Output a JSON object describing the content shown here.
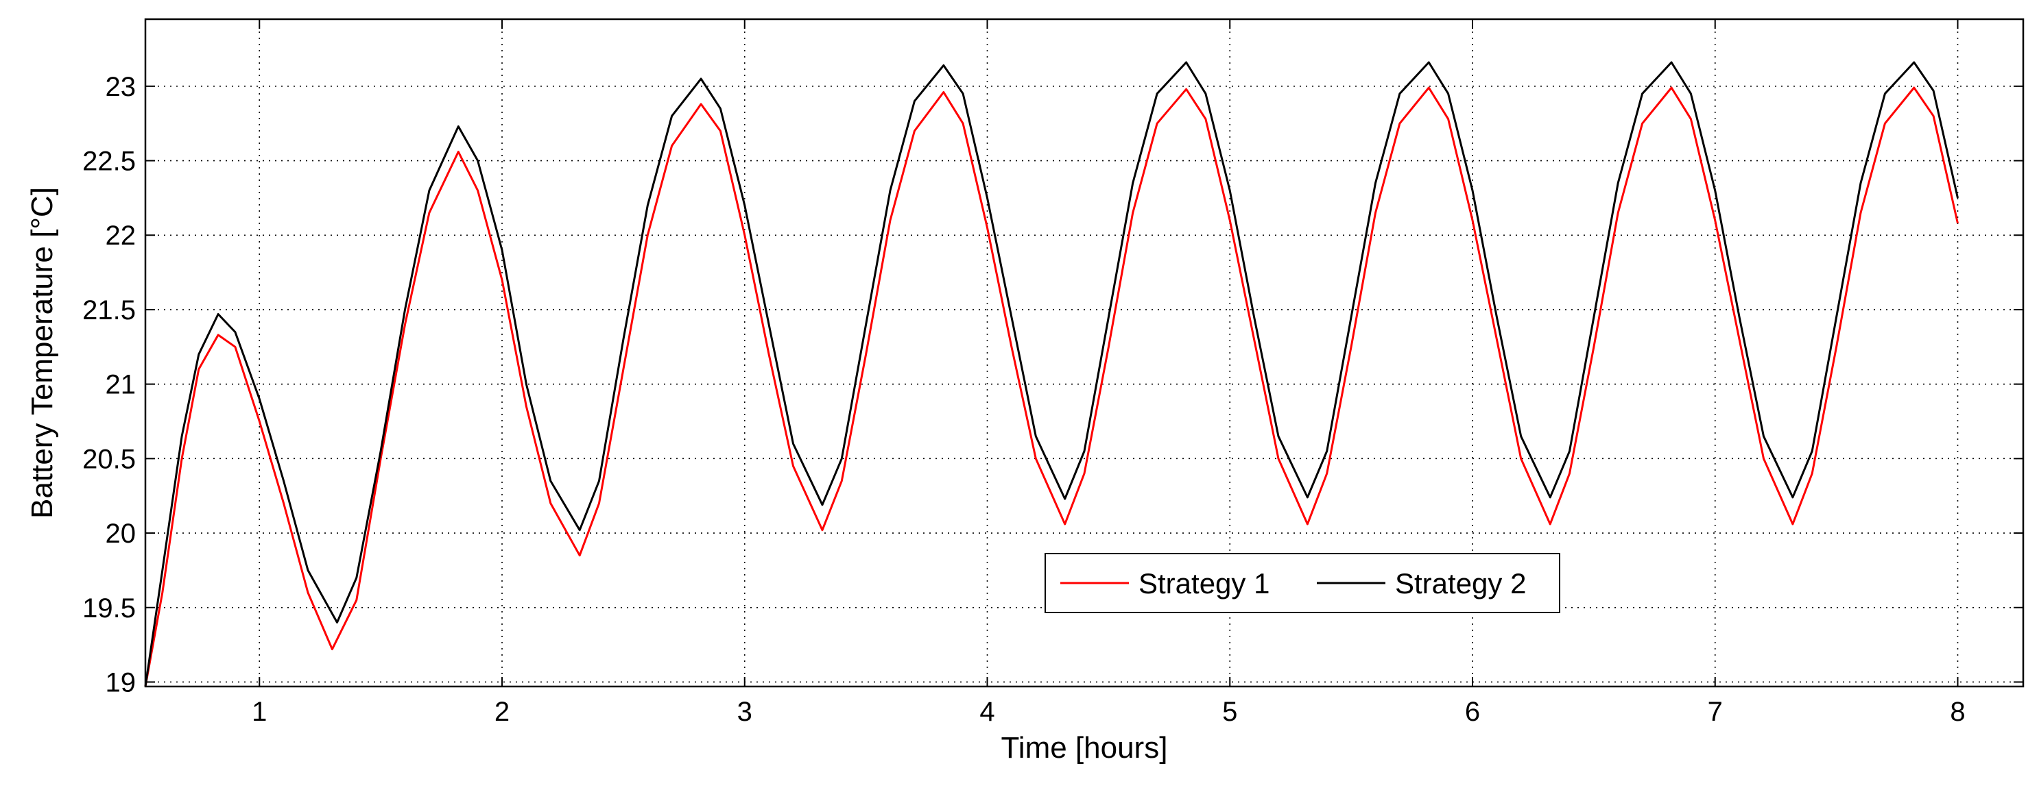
{
  "chart_data": {
    "type": "line",
    "title": "",
    "xlabel": "Time [hours]",
    "ylabel": "Battery Temperature [°C]",
    "xlim": [
      0.53,
      8.27
    ],
    "ylim": [
      18.97,
      23.45
    ],
    "xticks": [
      1,
      2,
      3,
      4,
      5,
      6,
      7,
      8
    ],
    "xtick_labels": [
      "1",
      "2",
      "3",
      "4",
      "5",
      "6",
      "7",
      "8"
    ],
    "yticks": [
      19,
      19.5,
      20,
      20.5,
      21,
      21.5,
      22,
      22.5,
      23
    ],
    "ytick_labels": [
      "19",
      "19.5",
      "20",
      "20.5",
      "21",
      "21.5",
      "22",
      "22.5",
      "23"
    ],
    "grid": true,
    "grid_style": "dotted",
    "legend_position": "lower-right (inside axes)",
    "legend_orientation": "horizontal",
    "series": [
      {
        "name": "Strategy 1",
        "color": "#ff0000",
        "points": [
          [
            0.53,
            18.97
          ],
          [
            0.6,
            19.6
          ],
          [
            0.68,
            20.5
          ],
          [
            0.75,
            21.1
          ],
          [
            0.83,
            21.33
          ],
          [
            0.9,
            21.25
          ],
          [
            1.0,
            20.75
          ],
          [
            1.1,
            20.2
          ],
          [
            1.2,
            19.6
          ],
          [
            1.3,
            19.22
          ],
          [
            1.4,
            19.55
          ],
          [
            1.5,
            20.5
          ],
          [
            1.6,
            21.4
          ],
          [
            1.7,
            22.15
          ],
          [
            1.82,
            22.56
          ],
          [
            1.9,
            22.3
          ],
          [
            2.0,
            21.7
          ],
          [
            2.1,
            20.85
          ],
          [
            2.2,
            20.2
          ],
          [
            2.32,
            19.85
          ],
          [
            2.4,
            20.2
          ],
          [
            2.5,
            21.1
          ],
          [
            2.6,
            22.0
          ],
          [
            2.7,
            22.6
          ],
          [
            2.82,
            22.88
          ],
          [
            2.9,
            22.7
          ],
          [
            3.0,
            22.0
          ],
          [
            3.1,
            21.2
          ],
          [
            3.2,
            20.45
          ],
          [
            3.32,
            20.02
          ],
          [
            3.4,
            20.35
          ],
          [
            3.5,
            21.2
          ],
          [
            3.6,
            22.1
          ],
          [
            3.7,
            22.7
          ],
          [
            3.82,
            22.96
          ],
          [
            3.9,
            22.75
          ],
          [
            4.0,
            22.05
          ],
          [
            4.1,
            21.25
          ],
          [
            4.2,
            20.5
          ],
          [
            4.32,
            20.06
          ],
          [
            4.4,
            20.4
          ],
          [
            4.5,
            21.25
          ],
          [
            4.6,
            22.15
          ],
          [
            4.7,
            22.75
          ],
          [
            4.82,
            22.98
          ],
          [
            4.9,
            22.78
          ],
          [
            5.0,
            22.1
          ],
          [
            5.1,
            21.3
          ],
          [
            5.2,
            20.5
          ],
          [
            5.32,
            20.06
          ],
          [
            5.4,
            20.4
          ],
          [
            5.5,
            21.25
          ],
          [
            5.6,
            22.15
          ],
          [
            5.7,
            22.75
          ],
          [
            5.82,
            22.99
          ],
          [
            5.9,
            22.78
          ],
          [
            6.0,
            22.1
          ],
          [
            6.1,
            21.3
          ],
          [
            6.2,
            20.5
          ],
          [
            6.32,
            20.06
          ],
          [
            6.4,
            20.4
          ],
          [
            6.5,
            21.25
          ],
          [
            6.6,
            22.15
          ],
          [
            6.7,
            22.75
          ],
          [
            6.82,
            22.99
          ],
          [
            6.9,
            22.78
          ],
          [
            7.0,
            22.1
          ],
          [
            7.1,
            21.3
          ],
          [
            7.2,
            20.5
          ],
          [
            7.32,
            20.06
          ],
          [
            7.4,
            20.4
          ],
          [
            7.5,
            21.25
          ],
          [
            7.6,
            22.15
          ],
          [
            7.7,
            22.75
          ],
          [
            7.82,
            22.99
          ],
          [
            7.9,
            22.8
          ],
          [
            8.0,
            22.08
          ]
        ]
      },
      {
        "name": "Strategy 2",
        "color": "#000000",
        "points": [
          [
            0.53,
            18.97
          ],
          [
            0.6,
            19.75
          ],
          [
            0.68,
            20.65
          ],
          [
            0.75,
            21.2
          ],
          [
            0.83,
            21.47
          ],
          [
            0.9,
            21.35
          ],
          [
            1.0,
            20.9
          ],
          [
            1.1,
            20.35
          ],
          [
            1.2,
            19.75
          ],
          [
            1.32,
            19.4
          ],
          [
            1.4,
            19.7
          ],
          [
            1.5,
            20.55
          ],
          [
            1.6,
            21.5
          ],
          [
            1.7,
            22.3
          ],
          [
            1.82,
            22.73
          ],
          [
            1.9,
            22.5
          ],
          [
            2.0,
            21.9
          ],
          [
            2.1,
            21.0
          ],
          [
            2.2,
            20.35
          ],
          [
            2.32,
            20.02
          ],
          [
            2.4,
            20.35
          ],
          [
            2.5,
            21.3
          ],
          [
            2.6,
            22.2
          ],
          [
            2.7,
            22.8
          ],
          [
            2.82,
            23.05
          ],
          [
            2.9,
            22.85
          ],
          [
            3.0,
            22.2
          ],
          [
            3.1,
            21.4
          ],
          [
            3.2,
            20.6
          ],
          [
            3.32,
            20.19
          ],
          [
            3.4,
            20.5
          ],
          [
            3.5,
            21.4
          ],
          [
            3.6,
            22.3
          ],
          [
            3.7,
            22.9
          ],
          [
            3.82,
            23.14
          ],
          [
            3.9,
            22.95
          ],
          [
            4.0,
            22.25
          ],
          [
            4.1,
            21.45
          ],
          [
            4.2,
            20.65
          ],
          [
            4.32,
            20.23
          ],
          [
            4.4,
            20.55
          ],
          [
            4.5,
            21.45
          ],
          [
            4.6,
            22.35
          ],
          [
            4.7,
            22.95
          ],
          [
            4.82,
            23.16
          ],
          [
            4.9,
            22.95
          ],
          [
            5.0,
            22.3
          ],
          [
            5.1,
            21.45
          ],
          [
            5.2,
            20.65
          ],
          [
            5.32,
            20.24
          ],
          [
            5.4,
            20.55
          ],
          [
            5.5,
            21.45
          ],
          [
            5.6,
            22.35
          ],
          [
            5.7,
            22.95
          ],
          [
            5.82,
            23.16
          ],
          [
            5.9,
            22.95
          ],
          [
            6.0,
            22.3
          ],
          [
            6.1,
            21.45
          ],
          [
            6.2,
            20.65
          ],
          [
            6.32,
            20.24
          ],
          [
            6.4,
            20.55
          ],
          [
            6.5,
            21.45
          ],
          [
            6.6,
            22.35
          ],
          [
            6.7,
            22.95
          ],
          [
            6.82,
            23.16
          ],
          [
            6.9,
            22.95
          ],
          [
            7.0,
            22.3
          ],
          [
            7.1,
            21.45
          ],
          [
            7.2,
            20.65
          ],
          [
            7.32,
            20.24
          ],
          [
            7.4,
            20.55
          ],
          [
            7.5,
            21.45
          ],
          [
            7.6,
            22.35
          ],
          [
            7.7,
            22.95
          ],
          [
            7.82,
            23.16
          ],
          [
            7.9,
            22.97
          ],
          [
            8.0,
            22.25
          ]
        ]
      }
    ]
  }
}
